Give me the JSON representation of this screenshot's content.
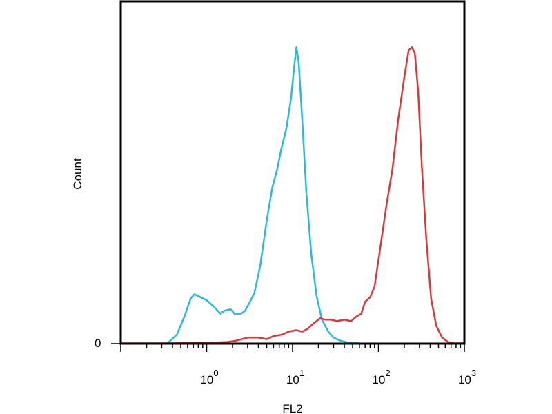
{
  "chart_data": {
    "type": "line",
    "title": "",
    "xlabel": "FL2",
    "ylabel": "Count",
    "x_scale": "log",
    "xlim": [
      0.1,
      1000
    ],
    "ylim": [
      0,
      100
    ],
    "y_tick_labels": [
      "0"
    ],
    "x_tick_labels": [
      {
        "base": "10",
        "exp": "0",
        "value": 1
      },
      {
        "base": "10",
        "exp": "1",
        "value": 10
      },
      {
        "base": "10",
        "exp": "2",
        "value": 100
      },
      {
        "base": "10",
        "exp": "3",
        "value": 1000
      }
    ],
    "grid": false,
    "legend": "none",
    "series": [
      {
        "color": "#2ab8e0",
        "x": [
          0.35,
          0.45,
          0.55,
          0.65,
          0.72,
          0.85,
          1.0,
          1.2,
          1.45,
          1.6,
          1.9,
          2.1,
          2.5,
          2.8,
          3.2,
          3.6,
          4.2,
          5.0,
          5.8,
          6.6,
          7.4,
          8.5,
          9.6,
          10.5,
          11.1,
          11.8,
          13.0,
          14.5,
          16.5,
          19.0,
          22.0,
          26.0,
          30.0,
          36.0,
          45.0,
          60.0
        ],
        "y": [
          0,
          3,
          9,
          15,
          16.5,
          15.5,
          14.5,
          12.5,
          10,
          11,
          11.5,
          10,
          10,
          11,
          14,
          17,
          26,
          41,
          52,
          58,
          65,
          72,
          82,
          93,
          99,
          94,
          74,
          50,
          30,
          16,
          8,
          4,
          2,
          1,
          0.3,
          0
        ]
      },
      {
        "color": "#d9373a",
        "x": [
          0.1,
          0.3,
          0.8,
          1.7,
          2.2,
          3.0,
          4.0,
          5.0,
          6.0,
          7.5,
          9.0,
          11.0,
          13.0,
          15.0,
          18.0,
          21.0,
          24.0,
          28.0,
          33.0,
          40.0,
          48.0,
          55.0,
          63.0,
          70.0,
          80.0,
          90.0,
          105.0,
          125.0,
          145.0,
          170.0,
          200.0,
          225.0,
          245.0,
          265.0,
          290.0,
          320.0,
          360.0,
          410.0,
          470.0,
          550.0,
          650.0,
          760.0,
          1000.0
        ],
        "y": [
          0,
          0,
          0.2,
          0.5,
          1,
          2,
          2,
          1.5,
          2.5,
          3,
          4,
          4.5,
          4,
          5,
          7,
          8.5,
          8,
          8,
          7.5,
          8,
          7.5,
          9,
          10,
          14,
          15.5,
          19,
          32,
          47,
          58,
          75,
          89,
          98,
          99,
          97,
          84,
          59,
          35,
          15,
          6,
          2,
          0.5,
          0,
          0
        ]
      }
    ]
  }
}
